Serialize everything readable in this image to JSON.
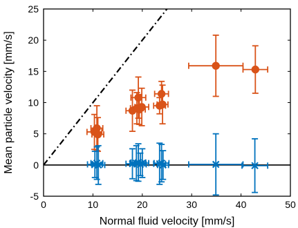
{
  "chart_data": {
    "type": "scatter",
    "xlabel": "Normal fluid velocity [mm/s]",
    "ylabel": "Mean particle velocity [mm/s]",
    "xlim": [
      0,
      50
    ],
    "ylim": [
      -5,
      25
    ],
    "xticks": [
      0,
      10,
      20,
      30,
      40,
      50
    ],
    "yticks": [
      -5,
      0,
      5,
      10,
      15,
      20,
      25
    ],
    "grid": false,
    "box": true,
    "reference_lines": [
      {
        "kind": "y=x",
        "style": "dash-dot",
        "color": "#000000"
      },
      {
        "kind": "y=0",
        "style": "solid",
        "color": "#000000"
      }
    ],
    "series": [
      {
        "marker": "circle",
        "color": "#d95319",
        "points": [
          {
            "x": 10.3,
            "y": 5.3,
            "xerr": 1.5,
            "yerr": 2.8
          },
          {
            "x": 10.8,
            "y": 5.9,
            "xerr": 1.2,
            "yerr": 3.6
          },
          {
            "x": 11.0,
            "y": 4.9,
            "xerr": 1.2,
            "yerr": 2.7
          },
          {
            "x": 18.0,
            "y": 8.7,
            "xerr": 1.3,
            "yerr": 3.3
          },
          {
            "x": 18.9,
            "y": 9.1,
            "xerr": 1.3,
            "yerr": 2.5
          },
          {
            "x": 19.2,
            "y": 10.8,
            "xerr": 1.5,
            "yerr": 3.3
          },
          {
            "x": 19.4,
            "y": 8.9,
            "xerr": 1.2,
            "yerr": 2.4
          },
          {
            "x": 19.9,
            "y": 9.3,
            "xerr": 1.4,
            "yerr": 3.0
          },
          {
            "x": 23.5,
            "y": 9.5,
            "xerr": 1.2,
            "yerr": 1.3
          },
          {
            "x": 23.9,
            "y": 11.4,
            "xerr": 1.4,
            "yerr": 2.0
          },
          {
            "x": 24.1,
            "y": 9.7,
            "xerr": 1.1,
            "yerr": 3.1
          },
          {
            "x": 34.9,
            "y": 15.9,
            "xerr": 5.5,
            "yerr": 4.9
          },
          {
            "x": 42.9,
            "y": 15.3,
            "xerr": 2.5,
            "yerr": 3.8
          }
        ]
      },
      {
        "marker": "x",
        "color": "#0072bd",
        "points": [
          {
            "x": 10.4,
            "y": 0.1,
            "xerr": 1.5,
            "yerr": 2.1
          },
          {
            "x": 10.8,
            "y": 0.3,
            "xerr": 1.2,
            "yerr": 2.6
          },
          {
            "x": 11.1,
            "y": 0.0,
            "xerr": 1.3,
            "yerr": 3.1
          },
          {
            "x": 18.0,
            "y": 0.2,
            "xerr": 1.3,
            "yerr": 2.4
          },
          {
            "x": 18.8,
            "y": 0.3,
            "xerr": 1.3,
            "yerr": 2.8
          },
          {
            "x": 19.2,
            "y": 0.4,
            "xerr": 1.5,
            "yerr": 3.0
          },
          {
            "x": 19.6,
            "y": 0.1,
            "xerr": 1.2,
            "yerr": 1.8
          },
          {
            "x": 20.0,
            "y": 0.3,
            "xerr": 1.3,
            "yerr": 2.3
          },
          {
            "x": 23.5,
            "y": 0.2,
            "xerr": 1.2,
            "yerr": 3.3
          },
          {
            "x": 23.9,
            "y": 0.3,
            "xerr": 1.5,
            "yerr": 3.0
          },
          {
            "x": 24.2,
            "y": 0.0,
            "xerr": 1.1,
            "yerr": 2.3
          },
          {
            "x": 34.9,
            "y": 0.1,
            "xerr": 5.5,
            "yerr": 4.9
          },
          {
            "x": 42.8,
            "y": -0.1,
            "xerr": 2.6,
            "yerr": 4.3
          }
        ]
      }
    ]
  }
}
